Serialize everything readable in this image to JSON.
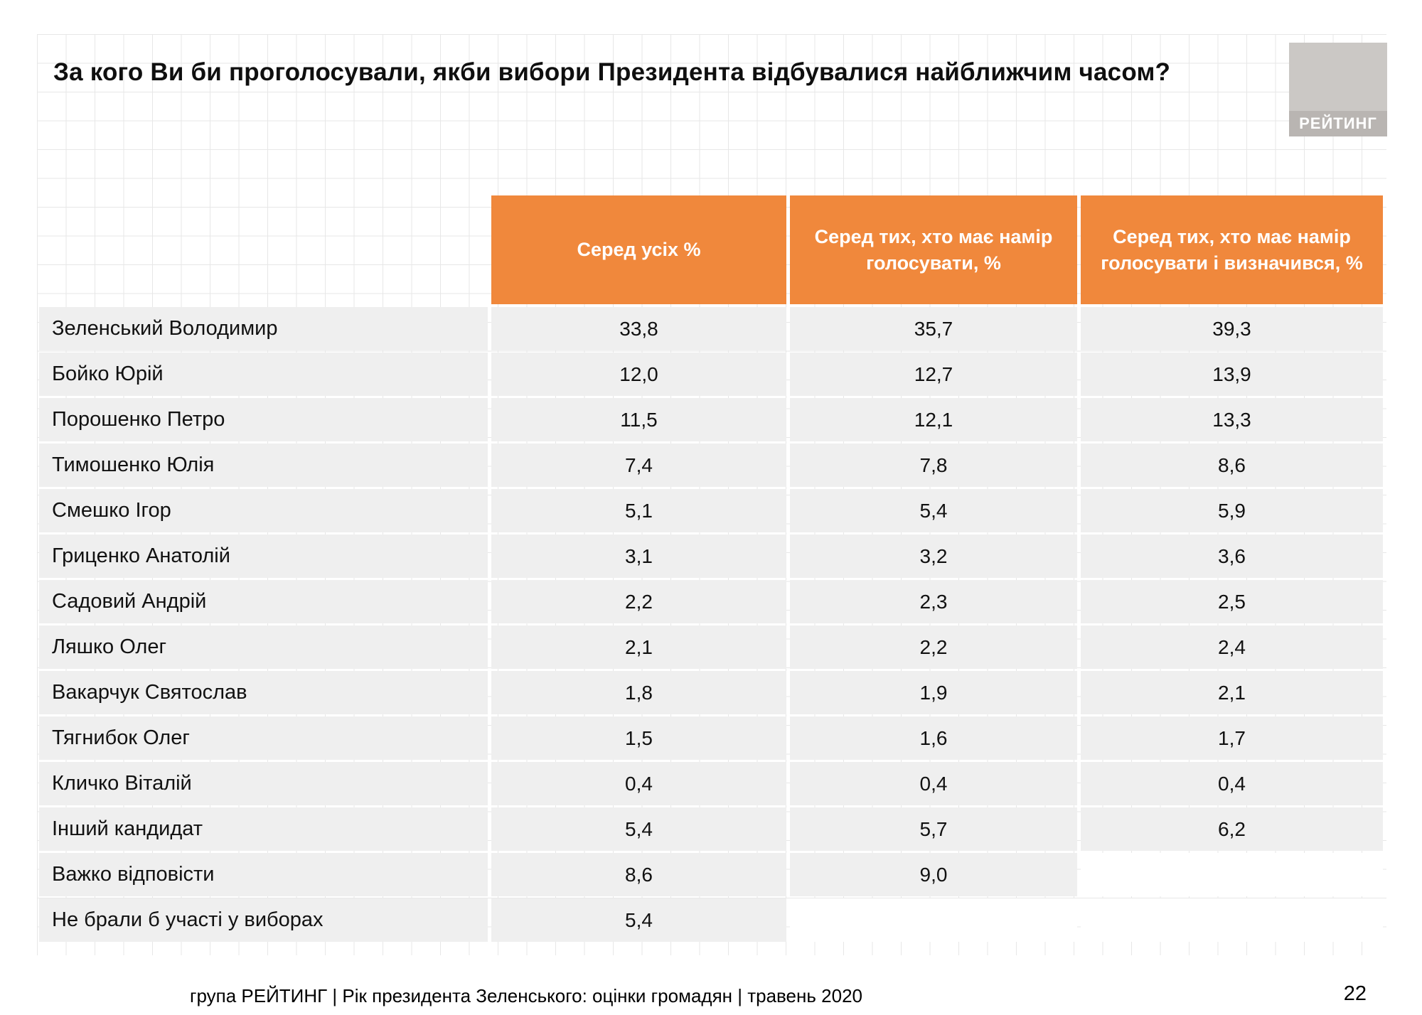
{
  "header": {
    "title": "За кого Ви би проголосували, якби вибори Президента відбувалися найближчим часом?",
    "logo_label": "РЕЙТИНГ"
  },
  "chart_data": {
    "type": "table",
    "title": "За кого Ви би проголосували, якби вибори Президента відбувалися найближчим часом?",
    "columns": [
      "Серед усіх %",
      "Серед тих, хто має намір голосувати, %",
      "Серед тих, хто має намір голосувати і визначився, %"
    ],
    "rows": [
      {
        "name": "Зеленський Володимир",
        "values": [
          "33,8",
          "35,7",
          "39,3"
        ]
      },
      {
        "name": "Бойко Юрій",
        "values": [
          "12,0",
          "12,7",
          "13,9"
        ]
      },
      {
        "name": "Порошенко Петро",
        "values": [
          "11,5",
          "12,1",
          "13,3"
        ]
      },
      {
        "name": "Тимошенко Юлія",
        "values": [
          "7,4",
          "7,8",
          "8,6"
        ]
      },
      {
        "name": "Смешко Ігор",
        "values": [
          "5,1",
          "5,4",
          "5,9"
        ]
      },
      {
        "name": "Гриценко Анатолій",
        "values": [
          "3,1",
          "3,2",
          "3,6"
        ]
      },
      {
        "name": "Садовий Андрій",
        "values": [
          "2,2",
          "2,3",
          "2,5"
        ]
      },
      {
        "name": "Ляшко Олег",
        "values": [
          "2,1",
          "2,2",
          "2,4"
        ]
      },
      {
        "name": "Вакарчук Святослав",
        "values": [
          "1,8",
          "1,9",
          "2,1"
        ]
      },
      {
        "name": "Тягнибок Олег",
        "values": [
          "1,5",
          "1,6",
          "1,7"
        ]
      },
      {
        "name": "Кличко Віталій",
        "values": [
          "0,4",
          "0,4",
          "0,4"
        ]
      },
      {
        "name": "Інший кандидат",
        "values": [
          "5,4",
          "5,7",
          "6,2"
        ]
      },
      {
        "name": "Важко відповісти",
        "values": [
          "8,6",
          "9,0",
          ""
        ]
      },
      {
        "name": "Не брали б участі у виборах",
        "values": [
          "5,4",
          "",
          ""
        ]
      }
    ]
  },
  "footer": {
    "caption": "група РЕЙТИНГ |  Рік президента Зеленського: оцінки громадян | травень 2020",
    "page_number": "22"
  },
  "colors": {
    "accent_orange": "#F0883C",
    "row_gray": "#EFEFEF",
    "header_text": "#FFFFFF",
    "logo_gray": "#CBC8C5"
  }
}
